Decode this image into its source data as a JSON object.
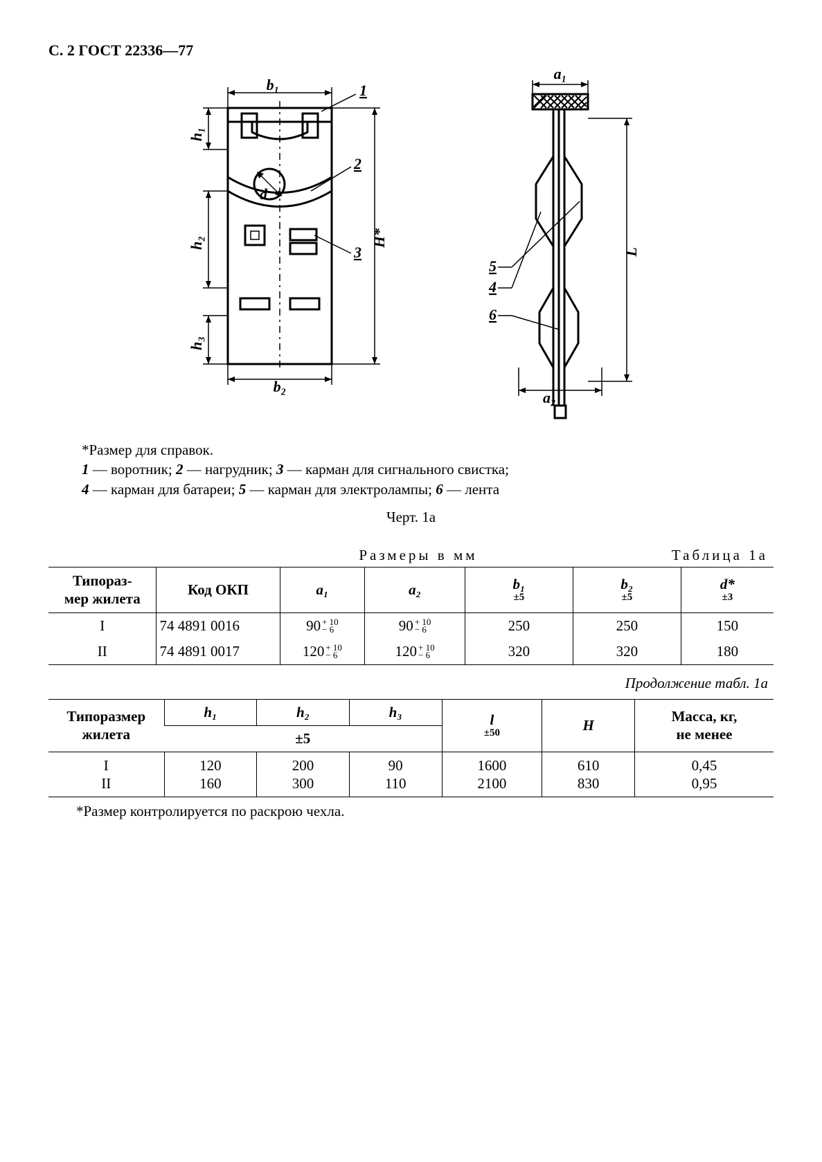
{
  "header": "С. 2 ГОСТ 22336—77",
  "figure": {
    "front": {
      "dims": {
        "b1": "b₁",
        "b2": "b₂",
        "h1": "h₁",
        "h2": "h₂",
        "h3": "h₃",
        "d": "d",
        "Hstar": "H*"
      },
      "callouts": {
        "c1": "1",
        "c2": "2",
        "c3": "3"
      }
    },
    "side": {
      "dims": {
        "a1": "a₁",
        "a2": "a₂",
        "L": "L"
      },
      "callouts": {
        "c4": "4",
        "c5": "5",
        "c6": "6"
      }
    }
  },
  "notes": {
    "ref_size": "*Размер для справок.",
    "legend1": "1 — воротник; 2 — нагрудник; 3 — карман для сигнального свистка;",
    "legend2": "4 — карман для батареи; 5 — карман для электролампы; 6 — лента"
  },
  "fig_caption": "Черт. 1а",
  "table1": {
    "label": "Таблица  1а",
    "subtitle": "Размеры в мм",
    "headers": {
      "type": "Типораз-\nмер жилета",
      "okp": "Код ОКП",
      "a1": "a₁",
      "a2": "a₂",
      "b1": {
        "sym": "b₁",
        "tol": "±5"
      },
      "b2": {
        "sym": "b₂",
        "tol": "±5"
      },
      "d": {
        "sym": "d*",
        "tol": "±3"
      }
    },
    "rows": [
      {
        "type": "I",
        "okp": "74 4891 0016",
        "a1": "90",
        "a_tol_up": "+ 10",
        "a_tol_dn": "− 6",
        "a2": "90",
        "b1": "250",
        "b2": "250",
        "d": "150"
      },
      {
        "type": "II",
        "okp": "74 4891 0017",
        "a1": "120",
        "a_tol_up": "+ 10",
        "a_tol_dn": "− 6",
        "a2": "120",
        "b1": "320",
        "b2": "320",
        "d": "180"
      }
    ]
  },
  "continuation": "Продолжение табл. 1а",
  "table2": {
    "headers": {
      "type": "Типоразмер\nжилета",
      "h1": "h₁",
      "h2": "h₂",
      "h3": "h₃",
      "h_tol": "±5",
      "l": {
        "sym": "l",
        "tol": "±50"
      },
      "H": "H",
      "mass": "Масса, кг,\nне менее"
    },
    "rows": [
      {
        "type": "I",
        "h1": "120",
        "h2": "200",
        "h3": "90",
        "l": "1600",
        "H": "610",
        "m": "0,45"
      },
      {
        "type": "II",
        "h1": "160",
        "h2": "300",
        "h3": "110",
        "l": "2100",
        "H": "830",
        "m": "0,95"
      }
    ]
  },
  "footnote": "*Размер контролируется по раскрою чехла."
}
